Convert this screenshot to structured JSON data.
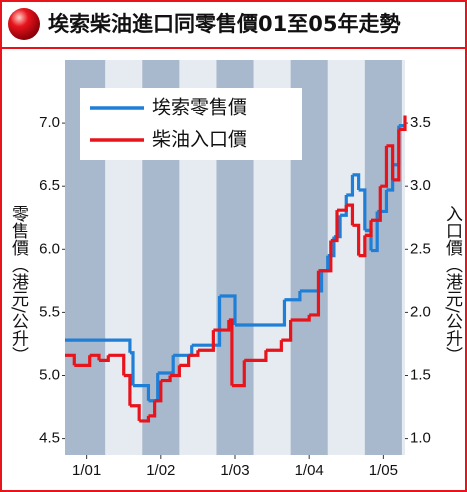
{
  "chart_data": {
    "type": "line",
    "step": true,
    "title": "埃索柴油進口同零售價01至05年走勢",
    "y_label": "零售價（港元/公升）",
    "y2_label": "入口價（港元/公升）",
    "xlim": [
      -3.5,
      51.5
    ],
    "xticks": [
      {
        "value": 0,
        "label": "1/01"
      },
      {
        "value": 12,
        "label": "1/02"
      },
      {
        "value": 24,
        "label": "1/03"
      },
      {
        "value": 36,
        "label": "1/04"
      },
      {
        "value": 48,
        "label": "1/05"
      }
    ],
    "ylim": [
      4.37,
      7.5
    ],
    "yticks": [
      4.5,
      {
        "value": 5,
        "label": "5.0"
      },
      5.5,
      {
        "value": 6,
        "label": "6.0"
      },
      6.5,
      {
        "value": 7,
        "label": "7.0"
      }
    ],
    "y2lim": [
      0.87,
      4.0
    ],
    "y2ticks": [
      {
        "value": 1,
        "label": "1.0"
      },
      1.5,
      {
        "value": 2,
        "label": "2.0"
      },
      2.5,
      {
        "value": 3,
        "label": "3.0"
      },
      3.5
    ],
    "legend": "upper left",
    "series": [
      {
        "name": "埃索零售價",
        "color": "#1f7fd6",
        "x": [
          -3.5,
          7,
          7.5,
          10,
          11.5,
          14,
          17,
          21.5,
          24,
          32,
          34.5,
          38,
          39,
          40,
          41,
          42,
          43,
          44,
          45,
          46,
          47,
          48.5,
          49.5,
          50.5,
          51.5
        ],
        "values": [
          5.28,
          5.18,
          4.92,
          4.8,
          5.02,
          5.16,
          5.24,
          5.63,
          5.4,
          5.6,
          5.67,
          5.83,
          5.95,
          6.1,
          6.27,
          6.43,
          6.59,
          6.47,
          6.15,
          5.99,
          6.3,
          6.47,
          6.67,
          6.98,
          6.98
        ]
      },
      {
        "name": "柴油入口價",
        "color": "#e8141c",
        "axis": "y2",
        "x": [
          -3.5,
          -2,
          0.5,
          2,
          3.5,
          6,
          7,
          8.5,
          10,
          11,
          12,
          13.5,
          15,
          16.5,
          18,
          20.5,
          23,
          23.5,
          25.5,
          29,
          31.5,
          33,
          36,
          37.5,
          39.5,
          40.5,
          42,
          43,
          44,
          45,
          46,
          47.5,
          48.5,
          49.5,
          50.5,
          51.5
        ],
        "values": [
          1.66,
          1.58,
          1.66,
          1.62,
          1.66,
          1.5,
          1.26,
          1.14,
          1.18,
          1.3,
          1.46,
          1.5,
          1.58,
          1.66,
          1.7,
          1.86,
          1.94,
          1.42,
          1.62,
          1.7,
          1.78,
          1.94,
          1.98,
          2.33,
          2.57,
          2.81,
          2.85,
          2.69,
          2.45,
          2.61,
          2.73,
          3.0,
          3.32,
          3.05,
          3.45,
          3.56
        ]
      }
    ]
  }
}
